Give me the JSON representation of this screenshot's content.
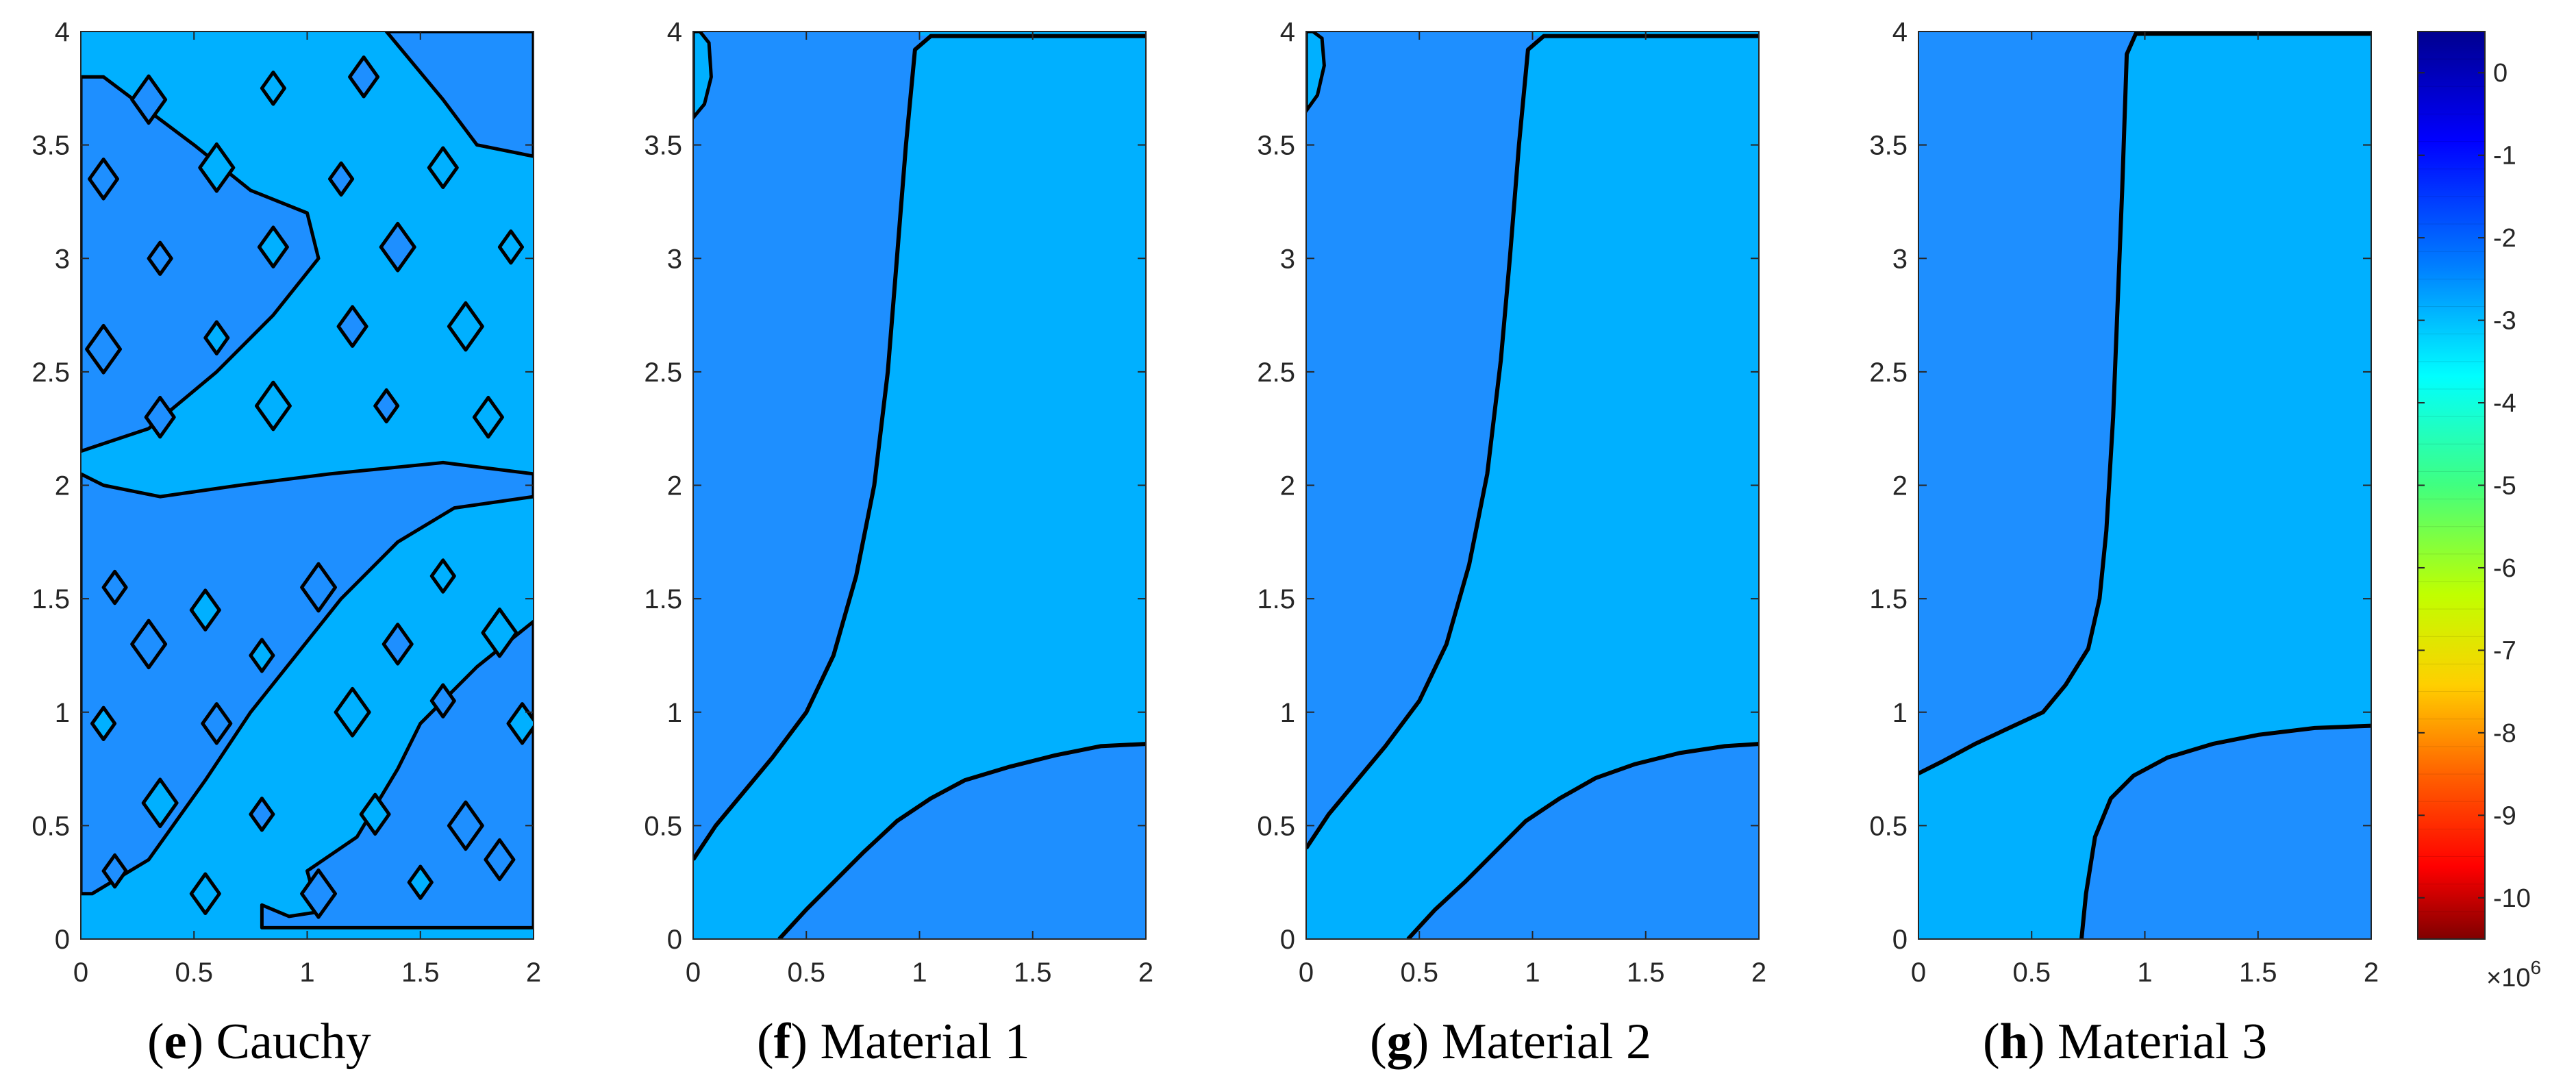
{
  "chart_data": {
    "type": "contour",
    "colorbar": {
      "range": [
        -10.5,
        0.5
      ],
      "ticks": [
        "0",
        "-1",
        "-2",
        "-3",
        "-4",
        "-5",
        "-6",
        "-7",
        "-8",
        "-9",
        "-10"
      ],
      "tick_values": [
        0,
        -1,
        -2,
        -3,
        -4,
        -5,
        -6,
        -7,
        -8,
        -9,
        -10
      ],
      "exponent_base": "×10",
      "exponent_power": "6",
      "levels": 33,
      "colormap": "jet (reversed: red = -10.5e6, dark blue = 0.5e6)"
    },
    "colors": {
      "dark_region": "#1E8FFF",
      "light_region": "#00B0FF",
      "contour_line": "#000000"
    },
    "x_ticks": [
      "0",
      "0.5",
      "1",
      "1.5",
      "2"
    ],
    "x_tick_values": [
      0,
      0.5,
      1,
      1.5,
      2
    ],
    "y_ticks": [
      "0",
      "0.5",
      "1",
      "1.5",
      "2",
      "2.5",
      "3",
      "3.5",
      "4"
    ],
    "y_tick_values": [
      0,
      0.5,
      1,
      1.5,
      2,
      2.5,
      3,
      3.5,
      4
    ],
    "xlim": [
      0,
      2
    ],
    "ylim": [
      0,
      4
    ],
    "panels": [
      {
        "id": "e",
        "caption_letter": "e",
        "caption_text": "Cauchy",
        "description": "Fragmented contour pattern with many diamond-shaped islands",
        "blobs": [
          [
            [
              0.8,
              0.15
            ],
            [
              0.92,
              0.1
            ],
            [
              1.05,
              0.12
            ],
            [
              1.0,
              0.3
            ],
            [
              1.22,
              0.45
            ],
            [
              1.4,
              0.75
            ],
            [
              1.5,
              0.95
            ],
            [
              1.75,
              1.2
            ],
            [
              2.0,
              1.4
            ],
            [
              2.0,
              0.05
            ],
            [
              0.8,
              0.05
            ]
          ],
          [
            [
              0.05,
              0.2
            ],
            [
              0.3,
              0.35
            ],
            [
              0.55,
              0.7
            ],
            [
              0.75,
              1.0
            ],
            [
              0.95,
              1.25
            ],
            [
              1.15,
              1.5
            ],
            [
              1.4,
              1.75
            ],
            [
              1.65,
              1.9
            ],
            [
              2.0,
              1.95
            ],
            [
              2.0,
              2.05
            ],
            [
              1.6,
              2.1
            ],
            [
              1.1,
              2.05
            ],
            [
              0.7,
              2.0
            ],
            [
              0.35,
              1.95
            ],
            [
              0.1,
              2.0
            ],
            [
              0.0,
              2.05
            ],
            [
              0.0,
              0.2
            ]
          ],
          [
            [
              0.0,
              2.15
            ],
            [
              0.3,
              2.25
            ],
            [
              0.6,
              2.5
            ],
            [
              0.85,
              2.75
            ],
            [
              1.05,
              3.0
            ],
            [
              1.0,
              3.2
            ],
            [
              0.75,
              3.3
            ],
            [
              0.5,
              3.5
            ],
            [
              0.3,
              3.65
            ],
            [
              0.1,
              3.8
            ],
            [
              0.0,
              3.8
            ]
          ],
          [
            [
              1.35,
              4.0
            ],
            [
              1.6,
              3.7
            ],
            [
              1.75,
              3.5
            ],
            [
              2.0,
              3.45
            ],
            [
              2.0,
              4.0
            ]
          ]
        ],
        "islands": [
          [
            0.15,
            0.3
          ],
          [
            0.55,
            0.2
          ],
          [
            1.05,
            0.2
          ],
          [
            1.5,
            0.25
          ],
          [
            1.85,
            0.35
          ],
          [
            0.35,
            0.6
          ],
          [
            0.8,
            0.55
          ],
          [
            1.3,
            0.55
          ],
          [
            1.7,
            0.5
          ],
          [
            0.1,
            0.95
          ],
          [
            0.6,
            0.95
          ],
          [
            1.2,
            1.0
          ],
          [
            1.6,
            1.05
          ],
          [
            1.95,
            0.95
          ],
          [
            0.3,
            1.3
          ],
          [
            0.8,
            1.25
          ],
          [
            1.4,
            1.3
          ],
          [
            1.85,
            1.35
          ],
          [
            0.15,
            1.55
          ],
          [
            0.55,
            1.45
          ],
          [
            1.05,
            1.55
          ],
          [
            1.6,
            1.6
          ],
          [
            0.35,
            2.3
          ],
          [
            0.85,
            2.35
          ],
          [
            1.35,
            2.35
          ],
          [
            1.8,
            2.3
          ],
          [
            0.1,
            2.6
          ],
          [
            0.6,
            2.65
          ],
          [
            1.2,
            2.7
          ],
          [
            1.7,
            2.7
          ],
          [
            0.35,
            3.0
          ],
          [
            0.85,
            3.05
          ],
          [
            1.4,
            3.05
          ],
          [
            1.9,
            3.05
          ],
          [
            0.1,
            3.35
          ],
          [
            0.6,
            3.4
          ],
          [
            1.15,
            3.35
          ],
          [
            1.6,
            3.4
          ],
          [
            0.3,
            3.7
          ],
          [
            0.85,
            3.75
          ],
          [
            1.25,
            3.8
          ]
        ]
      },
      {
        "id": "f",
        "caption_letter": "f",
        "caption_text": "Material 1",
        "curve1": [
          [
            0,
            0.35
          ],
          [
            0.1,
            0.5
          ],
          [
            0.25,
            0.68
          ],
          [
            0.35,
            0.8
          ],
          [
            0.5,
            1.0
          ],
          [
            0.62,
            1.25
          ],
          [
            0.72,
            1.6
          ],
          [
            0.8,
            2.0
          ],
          [
            0.86,
            2.5
          ],
          [
            0.9,
            3.0
          ],
          [
            0.94,
            3.5
          ],
          [
            0.98,
            3.92
          ],
          [
            1.05,
            3.98
          ],
          [
            2.0,
            3.98
          ]
        ],
        "curve2": [
          [
            0.38,
            0.0
          ],
          [
            0.5,
            0.13
          ],
          [
            0.62,
            0.25
          ],
          [
            0.75,
            0.38
          ],
          [
            0.9,
            0.52
          ],
          [
            1.05,
            0.62
          ],
          [
            1.2,
            0.7
          ],
          [
            1.4,
            0.76
          ],
          [
            1.6,
            0.81
          ],
          [
            1.8,
            0.85
          ],
          [
            2.0,
            0.86
          ]
        ],
        "topleft": [
          [
            0,
            3.62
          ],
          [
            0.05,
            3.68
          ],
          [
            0.08,
            3.8
          ],
          [
            0.07,
            3.95
          ],
          [
            0.03,
            4.0
          ],
          [
            0,
            4.0
          ]
        ]
      },
      {
        "id": "g",
        "caption_letter": "g",
        "caption_text": "Material 2",
        "curve1": [
          [
            0,
            0.4
          ],
          [
            0.1,
            0.55
          ],
          [
            0.25,
            0.73
          ],
          [
            0.35,
            0.85
          ],
          [
            0.5,
            1.05
          ],
          [
            0.62,
            1.3
          ],
          [
            0.72,
            1.65
          ],
          [
            0.8,
            2.05
          ],
          [
            0.86,
            2.55
          ],
          [
            0.9,
            3.0
          ],
          [
            0.94,
            3.5
          ],
          [
            0.98,
            3.92
          ],
          [
            1.05,
            3.98
          ],
          [
            2.0,
            3.98
          ]
        ],
        "curve2": [
          [
            0.45,
            0.0
          ],
          [
            0.57,
            0.13
          ],
          [
            0.7,
            0.25
          ],
          [
            0.83,
            0.38
          ],
          [
            0.97,
            0.52
          ],
          [
            1.12,
            0.62
          ],
          [
            1.28,
            0.71
          ],
          [
            1.45,
            0.77
          ],
          [
            1.65,
            0.82
          ],
          [
            1.85,
            0.85
          ],
          [
            2.0,
            0.86
          ]
        ],
        "topleft": [
          [
            0,
            3.65
          ],
          [
            0.05,
            3.72
          ],
          [
            0.08,
            3.85
          ],
          [
            0.07,
            3.97
          ],
          [
            0.03,
            4.0
          ],
          [
            0,
            4.0
          ]
        ]
      },
      {
        "id": "h",
        "caption_letter": "h",
        "caption_text": "Material 3",
        "curve1": [
          [
            0,
            0.73
          ],
          [
            0.1,
            0.78
          ],
          [
            0.25,
            0.86
          ],
          [
            0.4,
            0.93
          ],
          [
            0.55,
            1.0
          ],
          [
            0.65,
            1.12
          ],
          [
            0.75,
            1.28
          ],
          [
            0.8,
            1.5
          ],
          [
            0.83,
            1.8
          ],
          [
            0.86,
            2.3
          ],
          [
            0.88,
            2.8
          ],
          [
            0.9,
            3.3
          ],
          [
            0.92,
            3.9
          ],
          [
            0.96,
            3.99
          ],
          [
            2.0,
            3.99
          ]
        ],
        "curve2": [
          [
            0.72,
            0.0
          ],
          [
            0.74,
            0.2
          ],
          [
            0.78,
            0.45
          ],
          [
            0.85,
            0.62
          ],
          [
            0.95,
            0.72
          ],
          [
            1.1,
            0.8
          ],
          [
            1.3,
            0.86
          ],
          [
            1.5,
            0.9
          ],
          [
            1.75,
            0.93
          ],
          [
            2.0,
            0.94
          ]
        ],
        "topleft": []
      }
    ]
  }
}
